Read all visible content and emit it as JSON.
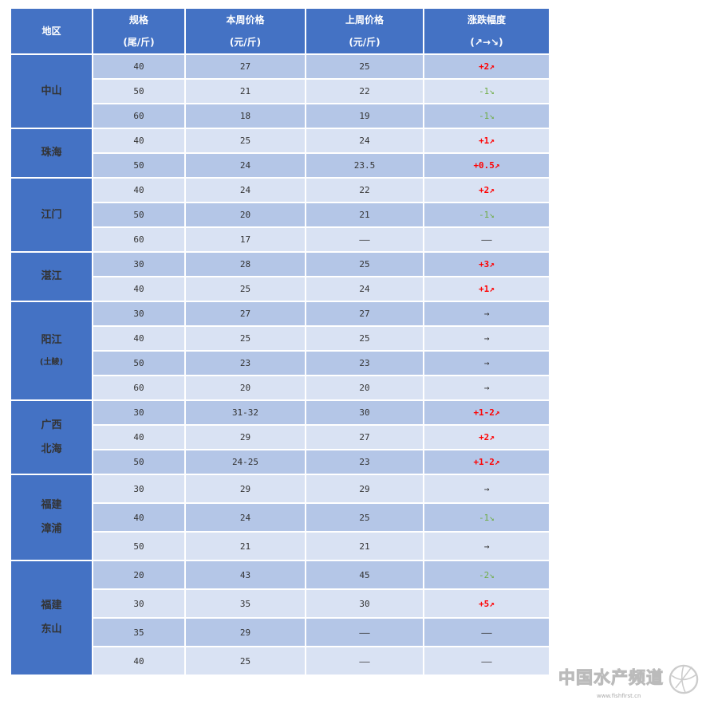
{
  "colors": {
    "header": "#4472c4",
    "row_dark": "#b4c6e7",
    "row_light": "#d9e2f3",
    "up": "#ff0000",
    "down": "#70ad47"
  },
  "header": {
    "region": "地区",
    "spec": [
      "规格",
      "(尾/斤)"
    ],
    "this_week": [
      "本周价格",
      "(元/斤)"
    ],
    "last_week": [
      "上周价格",
      "(元/斤)"
    ],
    "change": [
      "涨跌幅度",
      "(↗→↘)"
    ]
  },
  "groups": [
    {
      "region": [
        "中山"
      ],
      "rows": [
        {
          "spec": "40",
          "this": "27",
          "last": "25",
          "change": "+2↗",
          "trend": "up",
          "shade": "dark"
        },
        {
          "spec": "50",
          "this": "21",
          "last": "22",
          "change": "-1↘",
          "trend": "down",
          "shade": "light"
        },
        {
          "spec": "60",
          "this": "18",
          "last": "19",
          "change": "-1↘",
          "trend": "down",
          "shade": "dark"
        }
      ]
    },
    {
      "region": [
        "珠海"
      ],
      "rows": [
        {
          "spec": "40",
          "this": "25",
          "last": "24",
          "change": "+1↗",
          "trend": "up",
          "shade": "light"
        },
        {
          "spec": "50",
          "this": "24",
          "last": "23.5",
          "change": "+0.5↗",
          "trend": "up",
          "shade": "dark"
        }
      ]
    },
    {
      "region": [
        "江门"
      ],
      "rows": [
        {
          "spec": "40",
          "this": "24",
          "last": "22",
          "change": "+2↗",
          "trend": "up",
          "shade": "light"
        },
        {
          "spec": "50",
          "this": "20",
          "last": "21",
          "change": "-1↘",
          "trend": "down",
          "shade": "dark"
        },
        {
          "spec": "60",
          "this": "17",
          "last": "——",
          "change": "——",
          "trend": "none",
          "shade": "light"
        }
      ]
    },
    {
      "region": [
        "湛江"
      ],
      "rows": [
        {
          "spec": "30",
          "this": "28",
          "last": "25",
          "change": "+3↗",
          "trend": "up",
          "shade": "dark"
        },
        {
          "spec": "40",
          "this": "25",
          "last": "24",
          "change": "+1↗",
          "trend": "up",
          "shade": "light"
        }
      ]
    },
    {
      "region": [
        "阳江"
      ],
      "sub": "(土鲮)",
      "rows": [
        {
          "spec": "30",
          "this": "27",
          "last": "27",
          "change": "→",
          "trend": "flat",
          "shade": "dark"
        },
        {
          "spec": "40",
          "this": "25",
          "last": "25",
          "change": "→",
          "trend": "flat",
          "shade": "light"
        },
        {
          "spec": "50",
          "this": "23",
          "last": "23",
          "change": "→",
          "trend": "flat",
          "shade": "dark"
        },
        {
          "spec": "60",
          "this": "20",
          "last": "20",
          "change": "→",
          "trend": "flat",
          "shade": "light"
        }
      ]
    },
    {
      "region": [
        "广西",
        "北海"
      ],
      "rows": [
        {
          "spec": "30",
          "this": "31-32",
          "last": "30",
          "change": "+1-2↗",
          "trend": "up",
          "shade": "dark"
        },
        {
          "spec": "40",
          "this": "29",
          "last": "27",
          "change": "+2↗",
          "trend": "up",
          "shade": "light"
        },
        {
          "spec": "50",
          "this": "24-25",
          "last": "23",
          "change": "+1-2↗",
          "trend": "up",
          "shade": "dark"
        }
      ]
    },
    {
      "region": [
        "福建",
        "漳浦"
      ],
      "tall": true,
      "rows": [
        {
          "spec": "30",
          "this": "29",
          "last": "29",
          "change": "→",
          "trend": "flat",
          "shade": "light"
        },
        {
          "spec": "40",
          "this": "24",
          "last": "25",
          "change": "-1↘",
          "trend": "down",
          "shade": "dark"
        },
        {
          "spec": "50",
          "this": "21",
          "last": "21",
          "change": "→",
          "trend": "flat",
          "shade": "light"
        }
      ]
    },
    {
      "region": [
        "福建",
        "东山"
      ],
      "tall": true,
      "rows": [
        {
          "spec": "20",
          "this": "43",
          "last": "45",
          "change": "-2↘",
          "trend": "down",
          "shade": "dark"
        },
        {
          "spec": "30",
          "this": "35",
          "last": "30",
          "change": "+5↗",
          "trend": "up",
          "shade": "light"
        },
        {
          "spec": "35",
          "this": "29",
          "last": "——",
          "change": "——",
          "trend": "none",
          "shade": "dark"
        },
        {
          "spec": "40",
          "this": "25",
          "last": "——",
          "change": "——",
          "trend": "none",
          "shade": "light"
        }
      ]
    }
  ],
  "watermark": {
    "text": "中国水产频道",
    "url": "www.fishfirst.cn"
  }
}
